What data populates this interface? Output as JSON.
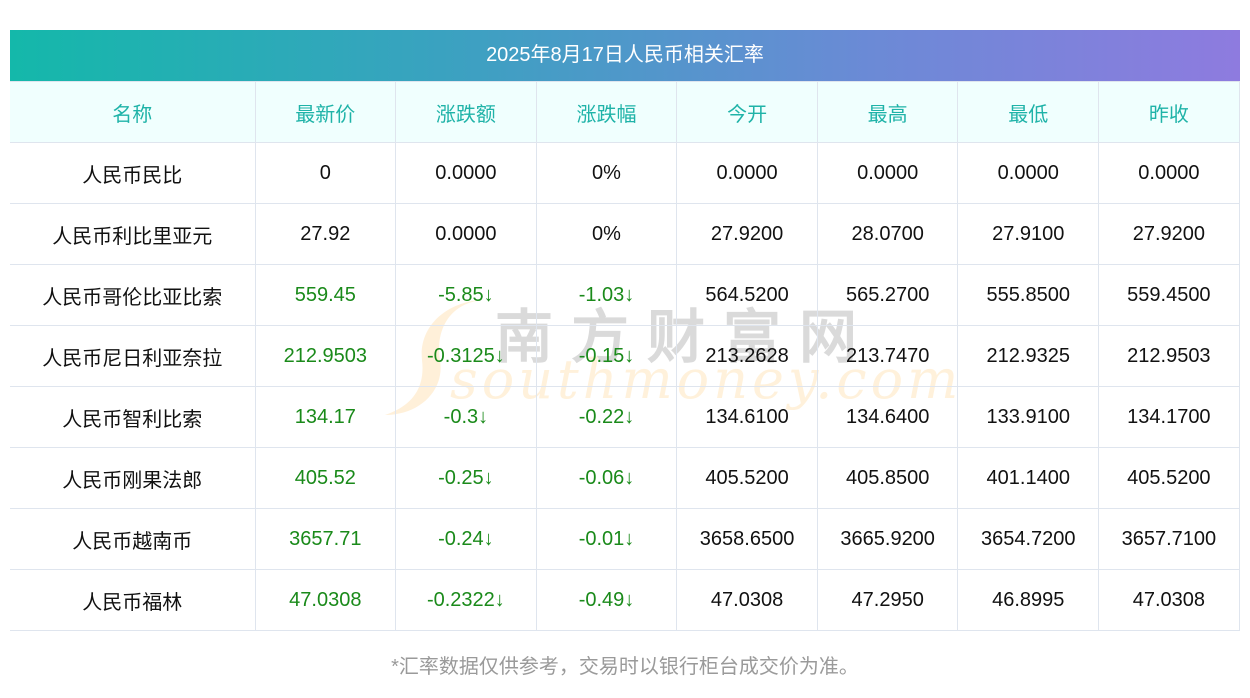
{
  "title": "2025年8月17日人民币相关汇率",
  "columns": [
    "名称",
    "最新价",
    "涨跌额",
    "涨跌幅",
    "今开",
    "最高",
    "最低",
    "昨收"
  ],
  "rows": [
    {
      "name": "人民币民比",
      "latest": "0",
      "change": "0.0000",
      "change_pct": "0%",
      "open": "0.0000",
      "high": "0.0000",
      "low": "0.0000",
      "prev_close": "0.0000",
      "trend": "flat"
    },
    {
      "name": "人民币利比里亚元",
      "latest": "27.92",
      "change": "0.0000",
      "change_pct": "0%",
      "open": "27.9200",
      "high": "28.0700",
      "low": "27.9100",
      "prev_close": "27.9200",
      "trend": "flat"
    },
    {
      "name": "人民币哥伦比亚比索",
      "latest": "559.45",
      "change": "-5.85↓",
      "change_pct": "-1.03↓",
      "open": "564.5200",
      "high": "565.2700",
      "low": "555.8500",
      "prev_close": "559.4500",
      "trend": "down"
    },
    {
      "name": "人民币尼日利亚奈拉",
      "latest": "212.9503",
      "change": "-0.3125↓",
      "change_pct": "-0.15↓",
      "open": "213.2628",
      "high": "213.7470",
      "low": "212.9325",
      "prev_close": "212.9503",
      "trend": "down"
    },
    {
      "name": "人民币智利比索",
      "latest": "134.17",
      "change": "-0.3↓",
      "change_pct": "-0.22↓",
      "open": "134.6100",
      "high": "134.6400",
      "low": "133.9100",
      "prev_close": "134.1700",
      "trend": "down"
    },
    {
      "name": "人民币刚果法郎",
      "latest": "405.52",
      "change": "-0.25↓",
      "change_pct": "-0.06↓",
      "open": "405.5200",
      "high": "405.8500",
      "low": "401.1400",
      "prev_close": "405.5200",
      "trend": "down"
    },
    {
      "name": "人民币越南币",
      "latest": "3657.71",
      "change": "-0.24↓",
      "change_pct": "-0.01↓",
      "open": "3658.6500",
      "high": "3665.9200",
      "low": "3654.7200",
      "prev_close": "3657.7100",
      "trend": "down"
    },
    {
      "name": "人民币福林",
      "latest": "47.0308",
      "change": "-0.2322↓",
      "change_pct": "-0.49↓",
      "open": "47.0308",
      "high": "47.2950",
      "low": "46.8995",
      "prev_close": "47.0308",
      "trend": "down"
    }
  ],
  "footer": "*汇率数据仅供参考，交易时以银行柜台成交价为准。",
  "watermark": {
    "cn": "南方财富网",
    "en": "southmoney.com"
  },
  "colors": {
    "header_text": "#1fb3a8",
    "down": "#1a8a1a",
    "gradient_start": "#14b8aa",
    "gradient_end": "#8e7bdf"
  }
}
